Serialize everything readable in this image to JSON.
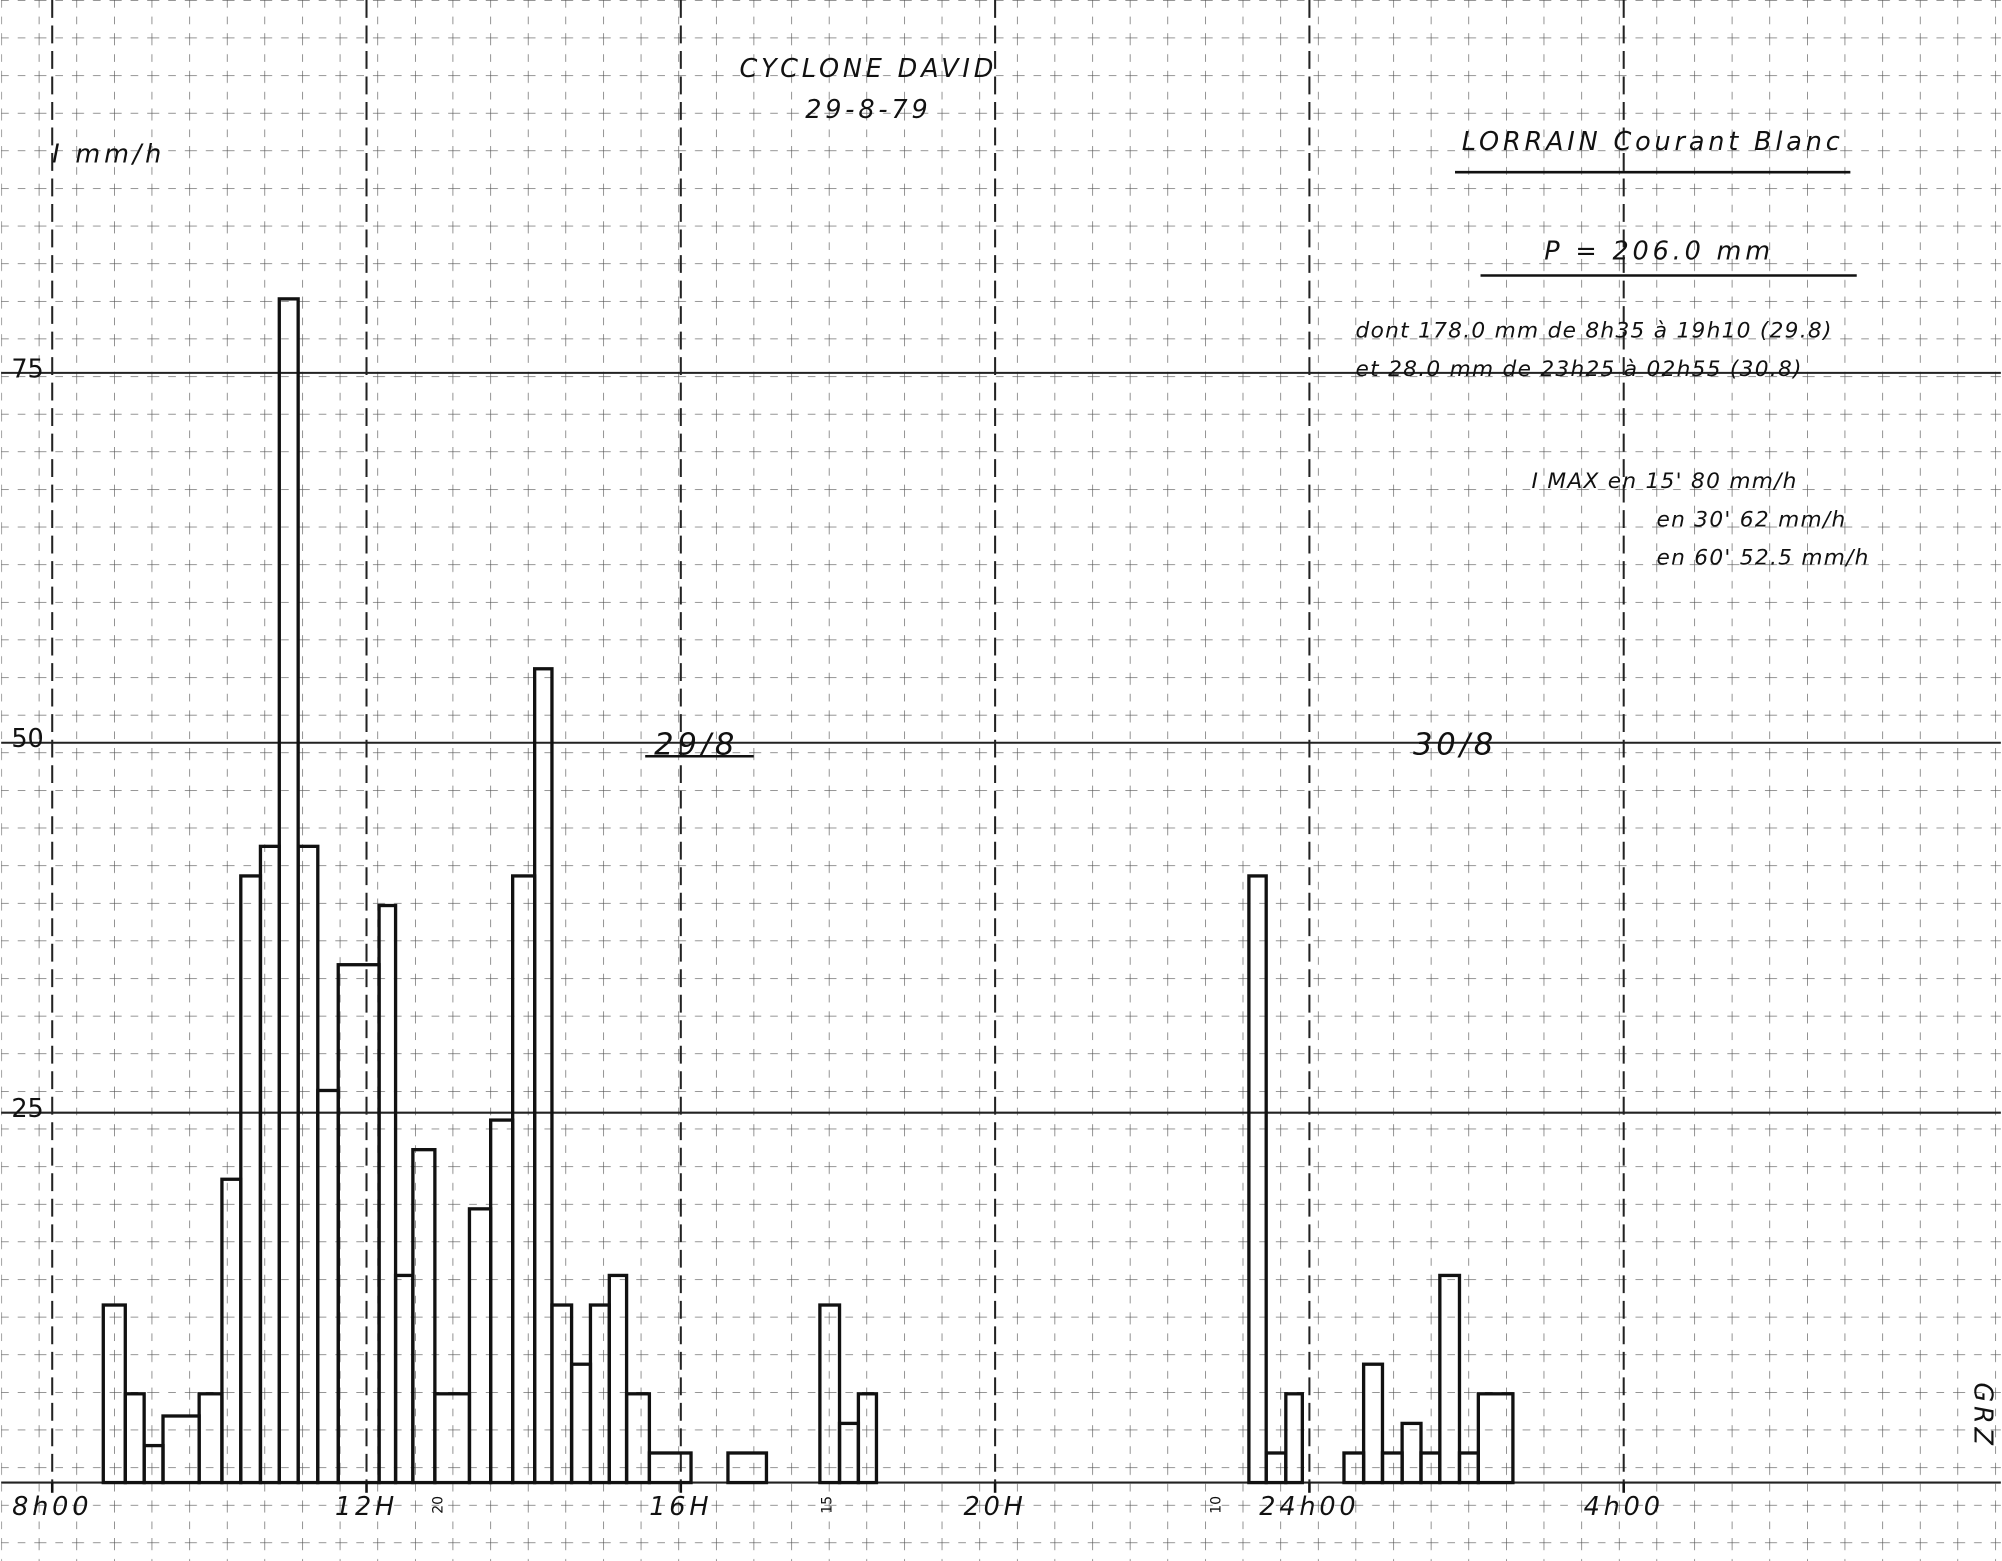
{
  "chart_data": {
    "type": "histogram",
    "title": "CYCLONE DAVID",
    "subtitle": "29-8-79",
    "y_label": "I mm/h",
    "bins": [
      8.65,
      8.93,
      9.17,
      9.41,
      9.87,
      10.16,
      10.4,
      10.65,
      10.89,
      11.13,
      11.38,
      11.64,
      12.16,
      12.37,
      12.59,
      12.87,
      13.31,
      13.58,
      13.86,
      14.14,
      14.36,
      14.61,
      14.85,
      15.09,
      15.31,
      15.6,
      16.13,
      16.6,
      17.09,
      17.77,
      18.02,
      18.26,
      18.49,
      23.23,
      23.45,
      23.7,
      23.91,
      24.44,
      24.69,
      24.93,
      25.18,
      25.42,
      25.66,
      25.91,
      26.15,
      26.59
    ],
    "values": [
      12,
      6,
      2.5,
      4.5,
      6,
      20.5,
      41,
      43,
      80,
      43,
      26.5,
      35,
      39,
      14,
      22.5,
      6,
      18.5,
      24.5,
      41,
      55,
      12,
      8,
      12,
      14,
      6,
      2,
      0,
      2,
      0,
      12,
      4,
      6,
      0,
      41,
      2,
      6,
      0,
      2,
      8,
      2,
      4,
      2,
      14,
      2,
      6
    ],
    "color": "#111111",
    "xlim": [
      7.35,
      32.8
    ],
    "ylim": [
      -5.3,
      100.2
    ],
    "xticks": [
      {
        "value": 8,
        "label": "8h00"
      },
      {
        "value": 12,
        "label": "12H"
      },
      {
        "value": 16,
        "label": "16H"
      },
      {
        "value": 20,
        "label": "20H"
      },
      {
        "value": 24,
        "label": "24h00"
      },
      {
        "value": 28,
        "label": "4h00"
      }
    ],
    "yticks": [
      25,
      50,
      75
    ],
    "grid": true,
    "annotations": {
      "station": "LORRAIN   Courant Blanc",
      "total": "P =  206.0 mm",
      "detail_1": "dont    178.0 mm   de 8h35 à 19h10   (29.8)",
      "detail_2": "et       28.0 mm   de 23h25 à 02h55   (30.8)",
      "imax_15": "I MAX   en 15'    80 mm/h",
      "imax_30": "en 30'    62 mm/h",
      "imax_60": "en 60'    52.5 mm/h",
      "day_1": "29/8",
      "day_2": "30/8",
      "signature": "GRZ",
      "minute_marks": [
        "20",
        "15",
        "10"
      ]
    }
  }
}
